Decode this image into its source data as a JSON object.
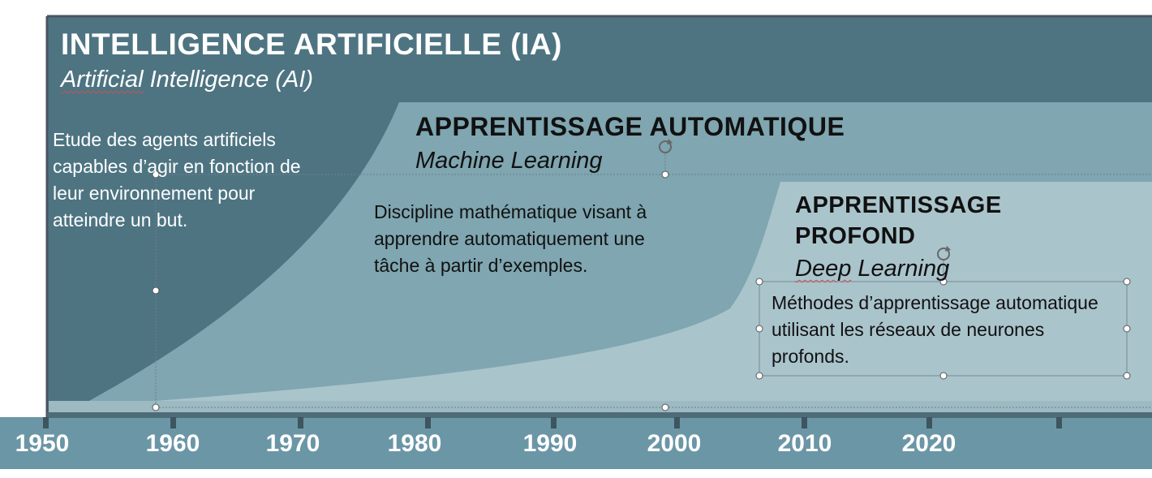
{
  "colors": {
    "ai_bg": "#4e7482",
    "ml_bg": "#7fa6b1",
    "dl_bg": "#aac4cc",
    "timeline_bar": "#6b96a6",
    "frame": "#4a5560",
    "ai_text": "#ffffff",
    "ml_text": "#111111"
  },
  "ai": {
    "title": "INTELLIGENCE ARTIFICIELLE (IA)",
    "subtitle_word1": "Artificial",
    "subtitle_rest": " Intelligence (AI)",
    "description": "Etude des agents artificiels capables d’agir en fonction de leur environnement pour atteindre un but."
  },
  "ml": {
    "title": "APPRENTISSAGE AUTOMATIQUE",
    "subtitle": "Machine Learning",
    "description": "Discipline mathématique visant à apprendre automatiquement une tâche à partir d’exemples."
  },
  "dl": {
    "title_line1": "APPRENTISSAGE",
    "title_line2": "PROFOND",
    "subtitle_word1": "Deep",
    "subtitle_rest": " Learning",
    "description": "Méthodes d’apprentissage automatique utilisant les réseaux de neurones profonds."
  },
  "timeline": {
    "years": [
      "1950",
      "1960",
      "1970",
      "1980",
      "1990",
      "2000",
      "2010",
      "2020"
    ]
  }
}
